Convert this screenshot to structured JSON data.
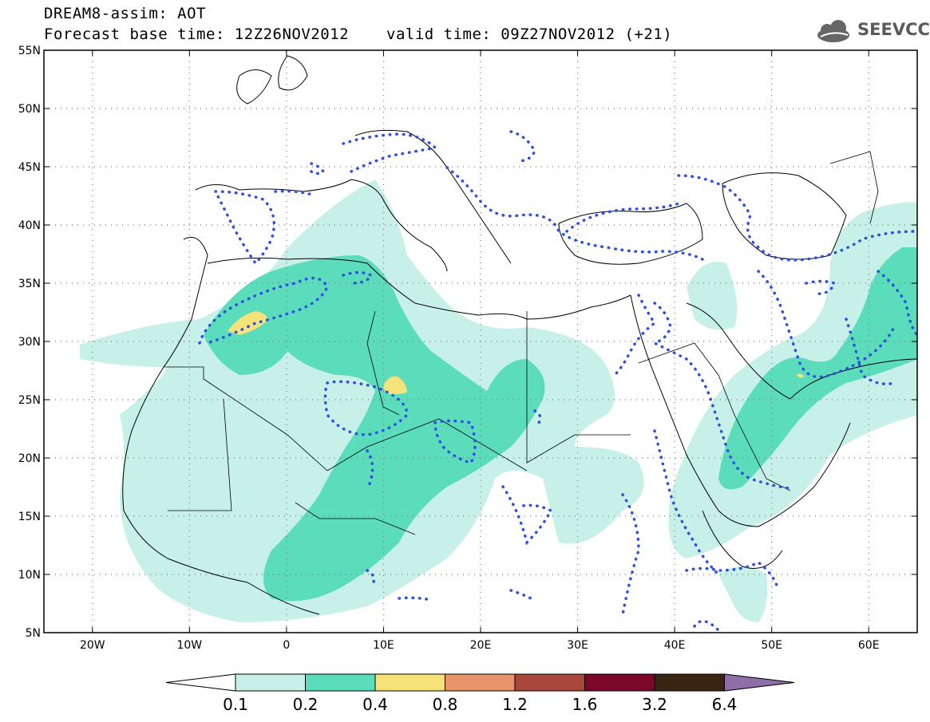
{
  "header": {
    "title": "DREAM8-assim: AOT",
    "base_time": "Forecast base time: 12Z26NOV2012",
    "valid_time": "valid time: 09Z27NOV2012 (+21)"
  },
  "logo": {
    "text": "SEEVCCC",
    "icon": "cloud-icon"
  },
  "map": {
    "lon_labels": [
      "20W",
      "10W",
      "0",
      "10E",
      "20E",
      "30E",
      "40E",
      "50E",
      "60E"
    ],
    "lat_labels": [
      "55N",
      "50N",
      "45N",
      "40N",
      "35N",
      "30N",
      "25N",
      "20N",
      "15N",
      "10N",
      "5N"
    ],
    "lon_range": [
      -25,
      65
    ],
    "lat_range": [
      5,
      55
    ],
    "gridlines": true
  },
  "legend": {
    "levels": [
      "0.1",
      "0.2",
      "0.4",
      "0.8",
      "1.2",
      "1.6",
      "3.2",
      "6.4"
    ],
    "colors": [
      "#c6f0e8",
      "#5bdcba",
      "#f5e37a",
      "#e8936a",
      "#a8473c",
      "#7b0828",
      "#3a2414",
      "#8f6ea8"
    ]
  },
  "colors": {
    "aot_low": "#c6f0e8",
    "aot_mid": "#5bdcba",
    "aot_high": "#f5e37a",
    "contour": "#2d4fe6"
  }
}
